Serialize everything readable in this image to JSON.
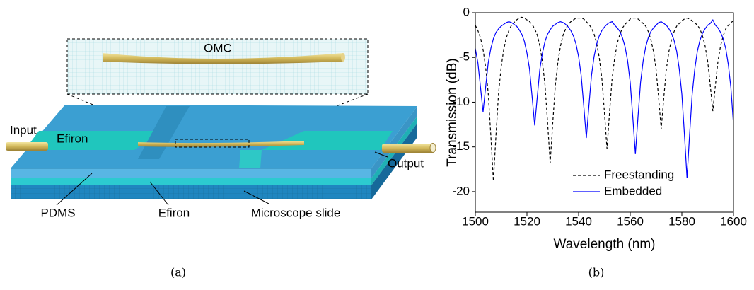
{
  "diagram": {
    "labels": {
      "omc": "OMC",
      "input": "Input",
      "efiron_top": "Efiron",
      "output": "Output",
      "pdms": "PDMS",
      "efiron_bottom": "Efiron",
      "slide": "Microscope slide"
    },
    "caption": "(a)"
  },
  "caption_b": "(b)",
  "chart_data": {
    "type": "line",
    "x_label": "Wavelength (nm)",
    "y_label": "Transmission (dB)",
    "xlim": [
      1500,
      1600
    ],
    "xticks": [
      1500,
      1520,
      1540,
      1560,
      1580,
      1600
    ],
    "ylim": [
      -22.3,
      0
    ],
    "yticks": [
      0,
      -5,
      -10,
      -15,
      -20
    ],
    "legend": "lower center",
    "grid": false,
    "x": [
      1500,
      1501,
      1502,
      1503,
      1504,
      1505,
      1506,
      1507,
      1508,
      1509,
      1510,
      1511,
      1512,
      1513,
      1514,
      1515,
      1516,
      1517,
      1518,
      1519,
      1520,
      1521,
      1522,
      1523,
      1524,
      1525,
      1526,
      1527,
      1528,
      1529,
      1530,
      1531,
      1532,
      1533,
      1534,
      1535,
      1536,
      1537,
      1538,
      1539,
      1540,
      1541,
      1542,
      1543,
      1544,
      1545,
      1546,
      1547,
      1548,
      1549,
      1550,
      1551,
      1552,
      1553,
      1554,
      1555,
      1556,
      1557,
      1558,
      1559,
      1560,
      1561,
      1562,
      1563,
      1564,
      1565,
      1566,
      1567,
      1568,
      1569,
      1570,
      1571,
      1572,
      1573,
      1574,
      1575,
      1576,
      1577,
      1578,
      1579,
      1580,
      1581,
      1582,
      1583,
      1584,
      1585,
      1586,
      1587,
      1588,
      1589,
      1590,
      1591,
      1592,
      1593,
      1594,
      1595,
      1596,
      1597,
      1598,
      1599,
      1600
    ],
    "series": [
      {
        "name": "Freestanding",
        "color": "#000000",
        "dash": "dashed",
        "values": [
          -1.4,
          -2.0,
          -2.8,
          -4.1,
          -6.1,
          -9.0,
          -13.7,
          -18.8,
          -13.7,
          -9.0,
          -6.1,
          -4.1,
          -2.8,
          -2.0,
          -1.4,
          -1.1,
          -0.8,
          -0.6,
          -0.5,
          -0.6,
          -0.8,
          -1.0,
          -1.3,
          -1.8,
          -2.5,
          -3.7,
          -5.5,
          -8.1,
          -12.3,
          -16.8,
          -12.3,
          -8.1,
          -5.5,
          -3.7,
          -2.5,
          -1.8,
          -1.3,
          -1.0,
          -0.8,
          -0.6,
          -0.6,
          -0.6,
          -0.7,
          -1.0,
          -1.3,
          -1.7,
          -2.4,
          -3.4,
          -5.0,
          -7.3,
          -11.1,
          -15.2,
          -11.1,
          -7.3,
          -5.0,
          -3.4,
          -2.4,
          -1.7,
          -1.3,
          -1.0,
          -0.7,
          -0.6,
          -0.6,
          -0.7,
          -0.9,
          -1.2,
          -1.5,
          -2.1,
          -3.0,
          -4.3,
          -6.3,
          -9.5,
          -13.0,
          -9.5,
          -6.3,
          -4.3,
          -3.0,
          -2.1,
          -1.5,
          -1.2,
          -0.9,
          -0.7,
          -0.6,
          -0.7,
          -0.9,
          -1.1,
          -1.4,
          -1.8,
          -2.6,
          -3.7,
          -5.4,
          -8.1,
          -11.0,
          -8.1,
          -5.4,
          -3.7,
          -2.6,
          -1.8,
          -1.4,
          -1.1,
          -0.9
        ]
      },
      {
        "name": "Embedded",
        "color": "#0000ff",
        "dash": "solid",
        "values": [
          -4.0,
          -5.6,
          -8.3,
          -11.1,
          -8.3,
          -5.6,
          -4.0,
          -2.9,
          -2.2,
          -1.8,
          -1.5,
          -1.3,
          -1.1,
          -1.0,
          -1.1,
          -1.3,
          -1.5,
          -1.9,
          -2.4,
          -3.2,
          -4.5,
          -6.3,
          -9.4,
          -12.6,
          -9.4,
          -6.3,
          -4.5,
          -3.2,
          -2.4,
          -1.9,
          -1.5,
          -1.3,
          -1.1,
          -1.0,
          -1.1,
          -1.3,
          -1.6,
          -2.0,
          -2.6,
          -3.5,
          -4.9,
          -7.0,
          -10.4,
          -14.0,
          -10.4,
          -7.0,
          -4.9,
          -3.5,
          -2.6,
          -2.0,
          -1.6,
          -1.3,
          -1.1,
          -1.0,
          -1.4,
          -1.7,
          -2.1,
          -2.8,
          -3.8,
          -5.4,
          -7.8,
          -11.7,
          -15.8,
          -11.7,
          -7.8,
          -5.4,
          -3.8,
          -2.8,
          -2.1,
          -1.7,
          -1.4,
          -1.1,
          -1.0,
          -1.2,
          -1.4,
          -1.8,
          -2.3,
          -3.1,
          -4.3,
          -6.3,
          -9.1,
          -13.6,
          -18.5,
          -13.6,
          -9.1,
          -6.3,
          -4.3,
          -3.1,
          -2.3,
          -1.8,
          -1.4,
          -1.2,
          -0.8,
          -1.4,
          -1.7,
          -2.2,
          -2.9,
          -4.0,
          -5.8,
          -8.4,
          -12.5
        ]
      }
    ]
  }
}
